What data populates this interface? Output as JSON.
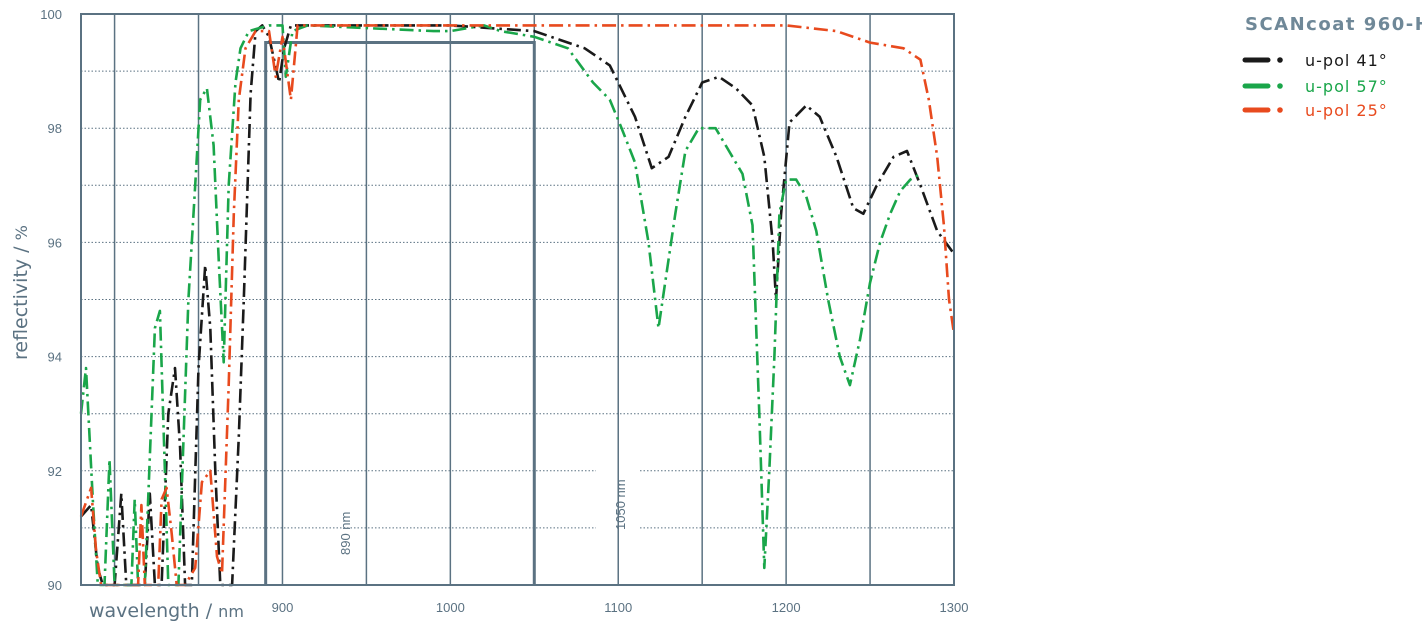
{
  "chart_data": {
    "type": "line",
    "title": "SCANcoat 960-H",
    "xlabel": "wavelength",
    "xunit": "nm",
    "ylabel": "reflectivity",
    "yunit": "%",
    "xlim": [
      780,
      1300
    ],
    "ylim": [
      90,
      100
    ],
    "xticks": [
      900,
      1000,
      1100,
      1200,
      1300
    ],
    "yticks": [
      90,
      92,
      94,
      96,
      98,
      100
    ],
    "grid": true,
    "legend_position": "top-right",
    "band": {
      "x_start": 890,
      "x_end": 1050,
      "y_top": 99.5,
      "start_label": "890 nm",
      "end_label": "1050 nm"
    },
    "series": [
      {
        "name": "u-pol 41°",
        "color": "#1a1a1a",
        "points": [
          [
            780,
            91.2
          ],
          [
            786,
            91.4
          ],
          [
            790,
            90.3
          ],
          [
            793,
            90
          ],
          [
            800,
            90
          ],
          [
            804,
            91.6
          ],
          [
            807,
            90
          ],
          [
            818,
            90
          ],
          [
            821,
            91.6
          ],
          [
            824,
            90
          ],
          [
            828,
            90
          ],
          [
            832,
            93
          ],
          [
            836,
            93.8
          ],
          [
            839,
            92.4
          ],
          [
            842,
            90
          ],
          [
            846,
            90
          ],
          [
            850,
            93.8
          ],
          [
            854,
            95.6
          ],
          [
            857,
            94.5
          ],
          [
            860,
            92
          ],
          [
            863,
            90
          ],
          [
            870,
            90
          ],
          [
            874,
            92.6
          ],
          [
            877,
            95
          ],
          [
            881,
            98.6
          ],
          [
            884,
            99.7
          ],
          [
            888,
            99.8
          ],
          [
            892,
            99.6
          ],
          [
            895,
            99.2
          ],
          [
            898,
            98.8
          ],
          [
            901,
            99.4
          ],
          [
            905,
            99.8
          ],
          [
            940,
            99.8
          ],
          [
            1000,
            99.8
          ],
          [
            1050,
            99.7
          ],
          [
            1080,
            99.4
          ],
          [
            1095,
            99.1
          ],
          [
            1110,
            98.2
          ],
          [
            1120,
            97.3
          ],
          [
            1130,
            97.5
          ],
          [
            1140,
            98.2
          ],
          [
            1150,
            98.8
          ],
          [
            1160,
            98.9
          ],
          [
            1170,
            98.7
          ],
          [
            1180,
            98.4
          ],
          [
            1187,
            97.5
          ],
          [
            1192,
            96
          ],
          [
            1194,
            95
          ],
          [
            1197,
            96.5
          ],
          [
            1202,
            98.1
          ],
          [
            1212,
            98.4
          ],
          [
            1220,
            98.2
          ],
          [
            1230,
            97.5
          ],
          [
            1240,
            96.6
          ],
          [
            1246,
            96.5
          ],
          [
            1254,
            97
          ],
          [
            1264,
            97.5
          ],
          [
            1272,
            97.6
          ],
          [
            1280,
            97
          ],
          [
            1290,
            96.2
          ],
          [
            1300,
            95.8
          ]
        ]
      },
      {
        "name": "u-pol 57°",
        "color": "#1aa64a",
        "points": [
          [
            780,
            93
          ],
          [
            783,
            93.8
          ],
          [
            787,
            91.5
          ],
          [
            790,
            90
          ],
          [
            794,
            90
          ],
          [
            797,
            92.2
          ],
          [
            800,
            90
          ],
          [
            810,
            90
          ],
          [
            812,
            91.5
          ],
          [
            814,
            90
          ],
          [
            818,
            90
          ],
          [
            824,
            94.5
          ],
          [
            827,
            94.8
          ],
          [
            830,
            92
          ],
          [
            832,
            90
          ],
          [
            838,
            90
          ],
          [
            844,
            95
          ],
          [
            848,
            97
          ],
          [
            851,
            98.5
          ],
          [
            855,
            98.7
          ],
          [
            859,
            97.7
          ],
          [
            862,
            95.7
          ],
          [
            865,
            93.9
          ],
          [
            868,
            97
          ],
          [
            872,
            98.8
          ],
          [
            875,
            99.4
          ],
          [
            880,
            99.7
          ],
          [
            892,
            99.8
          ],
          [
            900,
            99.8
          ],
          [
            902,
            98.9
          ],
          [
            906,
            99.7
          ],
          [
            915,
            99.8
          ],
          [
            990,
            99.7
          ],
          [
            1000,
            99.7
          ],
          [
            1020,
            99.8
          ],
          [
            1030,
            99.7
          ],
          [
            1050,
            99.6
          ],
          [
            1070,
            99.4
          ],
          [
            1085,
            98.8
          ],
          [
            1095,
            98.5
          ],
          [
            1102,
            98.0
          ],
          [
            1110,
            97.4
          ],
          [
            1118,
            96
          ],
          [
            1124,
            94.5
          ],
          [
            1128,
            95.3
          ],
          [
            1134,
            96.5
          ],
          [
            1140,
            97.6
          ],
          [
            1148,
            98
          ],
          [
            1158,
            98
          ],
          [
            1166,
            97.6
          ],
          [
            1174,
            97.2
          ],
          [
            1180,
            96.3
          ],
          [
            1184,
            93
          ],
          [
            1187,
            90.3
          ],
          [
            1190,
            92
          ],
          [
            1193,
            94
          ],
          [
            1196,
            96.5
          ],
          [
            1200,
            97.1
          ],
          [
            1206,
            97.1
          ],
          [
            1212,
            96.8
          ],
          [
            1218,
            96.2
          ],
          [
            1225,
            95
          ],
          [
            1232,
            94
          ],
          [
            1238,
            93.5
          ],
          [
            1244,
            94.3
          ],
          [
            1250,
            95.3
          ],
          [
            1256,
            96
          ],
          [
            1262,
            96.5
          ],
          [
            1268,
            96.9
          ],
          [
            1274,
            97.1
          ],
          [
            1280,
            97.2
          ]
        ]
      },
      {
        "name": "u-pol 25°",
        "color": "#e84a1e",
        "points": [
          [
            780,
            91.2
          ],
          [
            786,
            91.7
          ],
          [
            789,
            90.6
          ],
          [
            792,
            90
          ],
          [
            814,
            90
          ],
          [
            816,
            91.4
          ],
          [
            818,
            90
          ],
          [
            826,
            90
          ],
          [
            828,
            91.5
          ],
          [
            831,
            91.7
          ],
          [
            834,
            90.9
          ],
          [
            837,
            90
          ],
          [
            842,
            90
          ],
          [
            848,
            90.3
          ],
          [
            852,
            91.8
          ],
          [
            857,
            92
          ],
          [
            861,
            90.5
          ],
          [
            864,
            90.2
          ],
          [
            868,
            93.5
          ],
          [
            871,
            96.5
          ],
          [
            874,
            98.5
          ],
          [
            878,
            99.4
          ],
          [
            884,
            99.7
          ],
          [
            892,
            99.7
          ],
          [
            896,
            98.9
          ],
          [
            900,
            99.6
          ],
          [
            905,
            98.5
          ],
          [
            909,
            99.8
          ],
          [
            920,
            99.8
          ],
          [
            930,
            99.8
          ],
          [
            1000,
            99.8
          ],
          [
            1100,
            99.8
          ],
          [
            1120,
            99.8
          ],
          [
            1200,
            99.8
          ],
          [
            1230,
            99.7
          ],
          [
            1250,
            99.5
          ],
          [
            1270,
            99.4
          ],
          [
            1280,
            99.2
          ],
          [
            1285,
            98.5
          ],
          [
            1290,
            97.5
          ],
          [
            1294,
            96.3
          ],
          [
            1297,
            95
          ],
          [
            1300,
            94.4
          ]
        ]
      }
    ]
  }
}
